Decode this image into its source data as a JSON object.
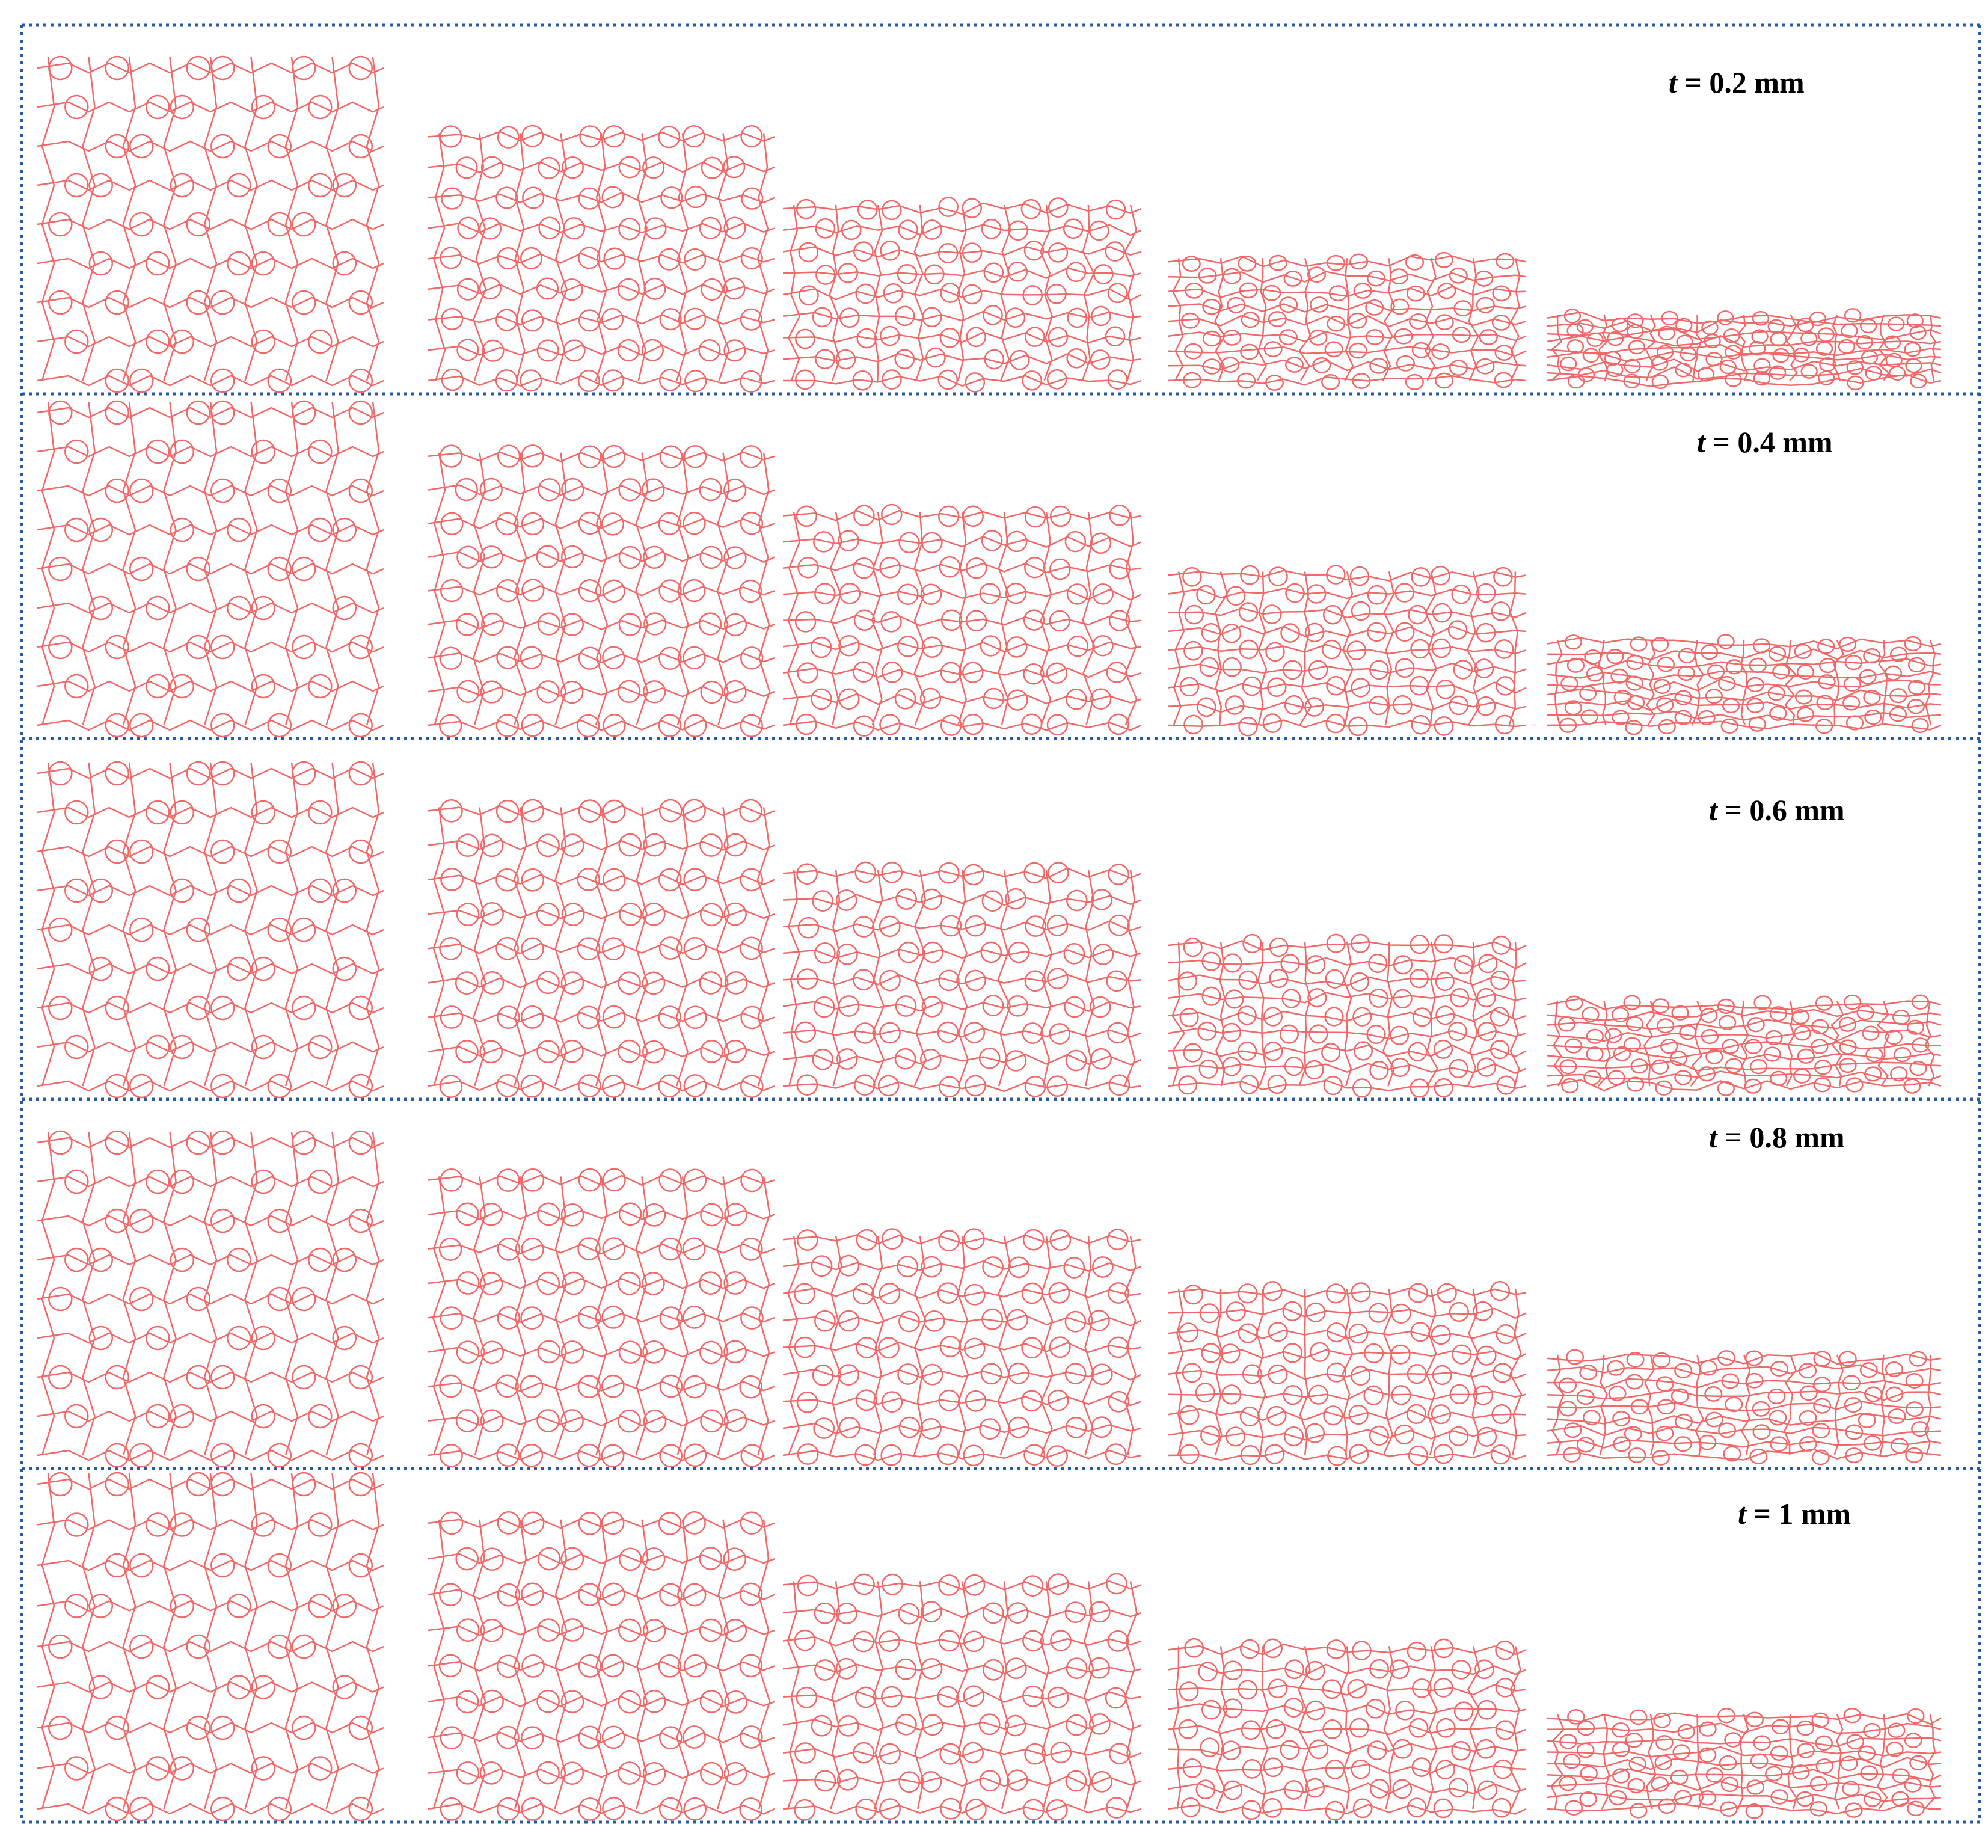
{
  "figure": {
    "line_color": "#f06868",
    "border_color": "#2b5a9e",
    "background": "#ffffff",
    "columns_per_row": 5,
    "rows": [
      {
        "variable": "t",
        "label": "= 0.2 mm",
        "stages": [
          1.0,
          0.78,
          0.55,
          0.38,
          0.2
        ]
      },
      {
        "variable": "t",
        "label": "= 0.4 mm",
        "stages": [
          1.0,
          0.86,
          0.67,
          0.48,
          0.26
        ]
      },
      {
        "variable": "t",
        "label": "= 0.6 mm",
        "stages": [
          1.0,
          0.88,
          0.68,
          0.45,
          0.26
        ]
      },
      {
        "variable": "t",
        "label": "= 0.8 mm",
        "stages": [
          1.0,
          0.88,
          0.69,
          0.52,
          0.31
        ]
      },
      {
        "variable": "t",
        "label": "= 1 mm",
        "stages": [
          1.0,
          0.88,
          0.69,
          0.49,
          0.28
        ]
      }
    ]
  }
}
